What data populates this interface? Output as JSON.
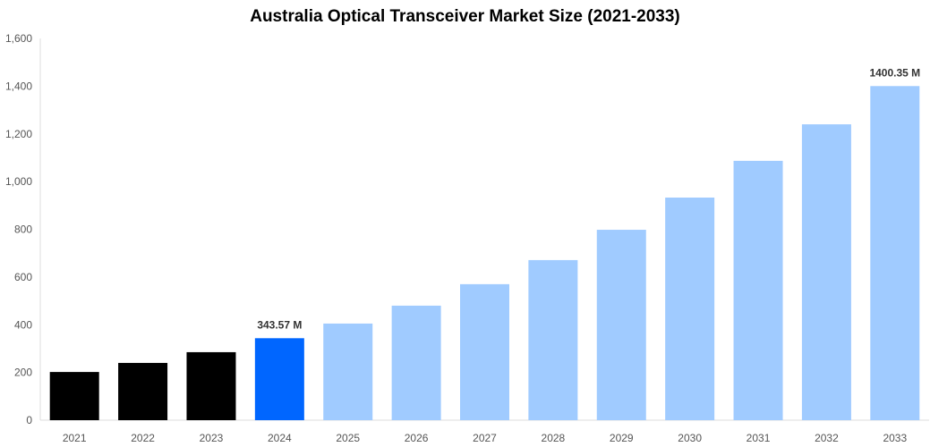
{
  "chart_data": {
    "type": "bar",
    "title": "Australia Optical Transceiver Market Size (2021-2033)",
    "xlabel": "",
    "ylabel": "",
    "categories": [
      "2021",
      "2022",
      "2023",
      "2024",
      "2025",
      "2026",
      "2027",
      "2028",
      "2029",
      "2030",
      "2031",
      "2032",
      "2033"
    ],
    "values": [
      202,
      240,
      285,
      343.57,
      405,
      480,
      570,
      671,
      798,
      933,
      1087,
      1240,
      1400.35
    ],
    "data_labels": {
      "3": "343.57 M",
      "12": "1400.35 M"
    },
    "ylim": [
      0,
      1600
    ],
    "yticks": [
      "0",
      "200",
      "400",
      "600",
      "800",
      "1,000",
      "1,200",
      "1,400",
      "1,600"
    ],
    "ytick_values": [
      0,
      200,
      400,
      600,
      800,
      1000,
      1200,
      1400,
      1600
    ],
    "grid": false,
    "legend": "none",
    "colors": {
      "historical": "#000000",
      "current": "#0066ff",
      "forecast": "#a0cbff",
      "axis": "#dddddd",
      "tick_text": "#555555"
    },
    "bar_color_groups": [
      "historical",
      "historical",
      "historical",
      "current",
      "forecast",
      "forecast",
      "forecast",
      "forecast",
      "forecast",
      "forecast",
      "forecast",
      "forecast",
      "forecast"
    ]
  }
}
